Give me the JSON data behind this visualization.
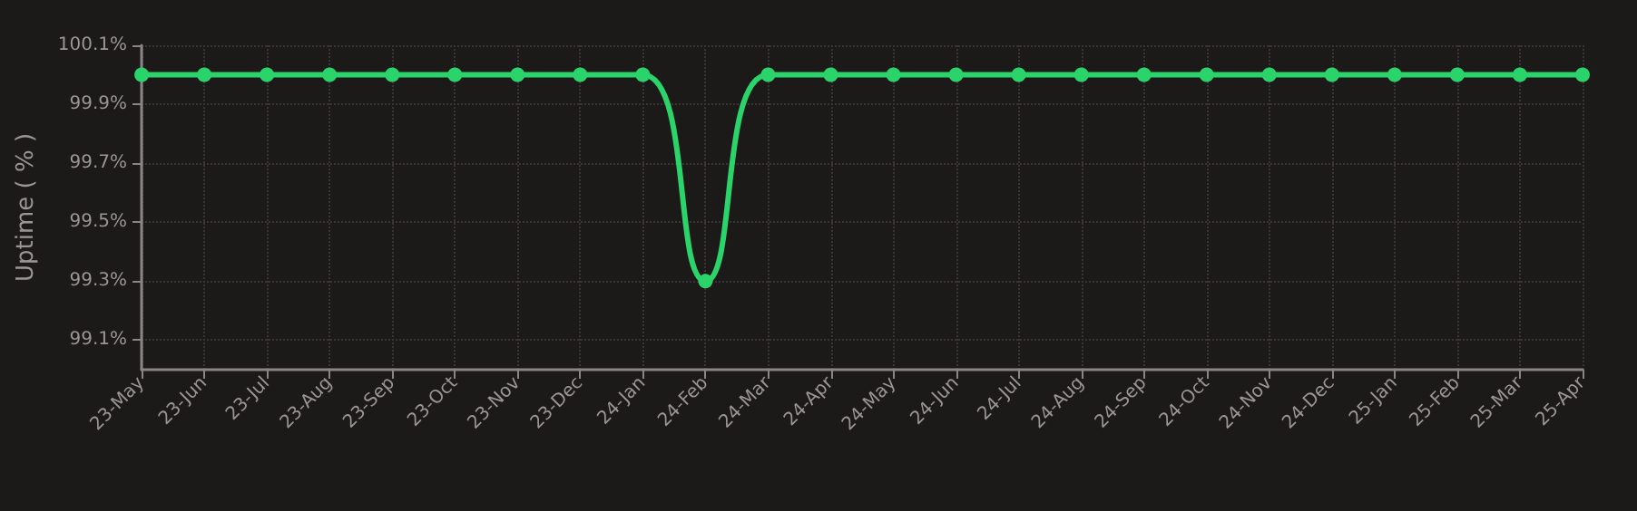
{
  "chart_data": {
    "type": "line",
    "ylabel": "Uptime ( % )",
    "categories": [
      "23-May",
      "23-Jun",
      "23-Jul",
      "23-Aug",
      "23-Sep",
      "23-Oct",
      "23-Nov",
      "23-Dec",
      "24-Jan",
      "24-Feb",
      "24-Mar",
      "24-Apr",
      "24-May",
      "24-Jun",
      "24-Jul",
      "24-Aug",
      "24-Sep",
      "24-Oct",
      "24-Nov",
      "24-Dec",
      "25-Jan",
      "25-Feb",
      "25-Mar",
      "25-Apr"
    ],
    "series": [
      {
        "color": "#2bd46a",
        "values": [
          100,
          100,
          100,
          100,
          100,
          100,
          100,
          100,
          100,
          99.3,
          100,
          100,
          100,
          100,
          100,
          100,
          100,
          100,
          100,
          100,
          100,
          100,
          100,
          100
        ]
      }
    ],
    "ylim": [
      99.0,
      100.1
    ],
    "yticks": [
      {
        "value": 99.1,
        "label": "99.1%"
      },
      {
        "value": 99.3,
        "label": "99.3%"
      },
      {
        "value": 99.5,
        "label": "99.5%"
      },
      {
        "value": 99.7,
        "label": "99.7%"
      },
      {
        "value": 99.9,
        "label": "99.9%"
      },
      {
        "value": 100.1,
        "label": "100.1%"
      }
    ],
    "grid": true,
    "marker": "circle",
    "line_style": "solid"
  }
}
